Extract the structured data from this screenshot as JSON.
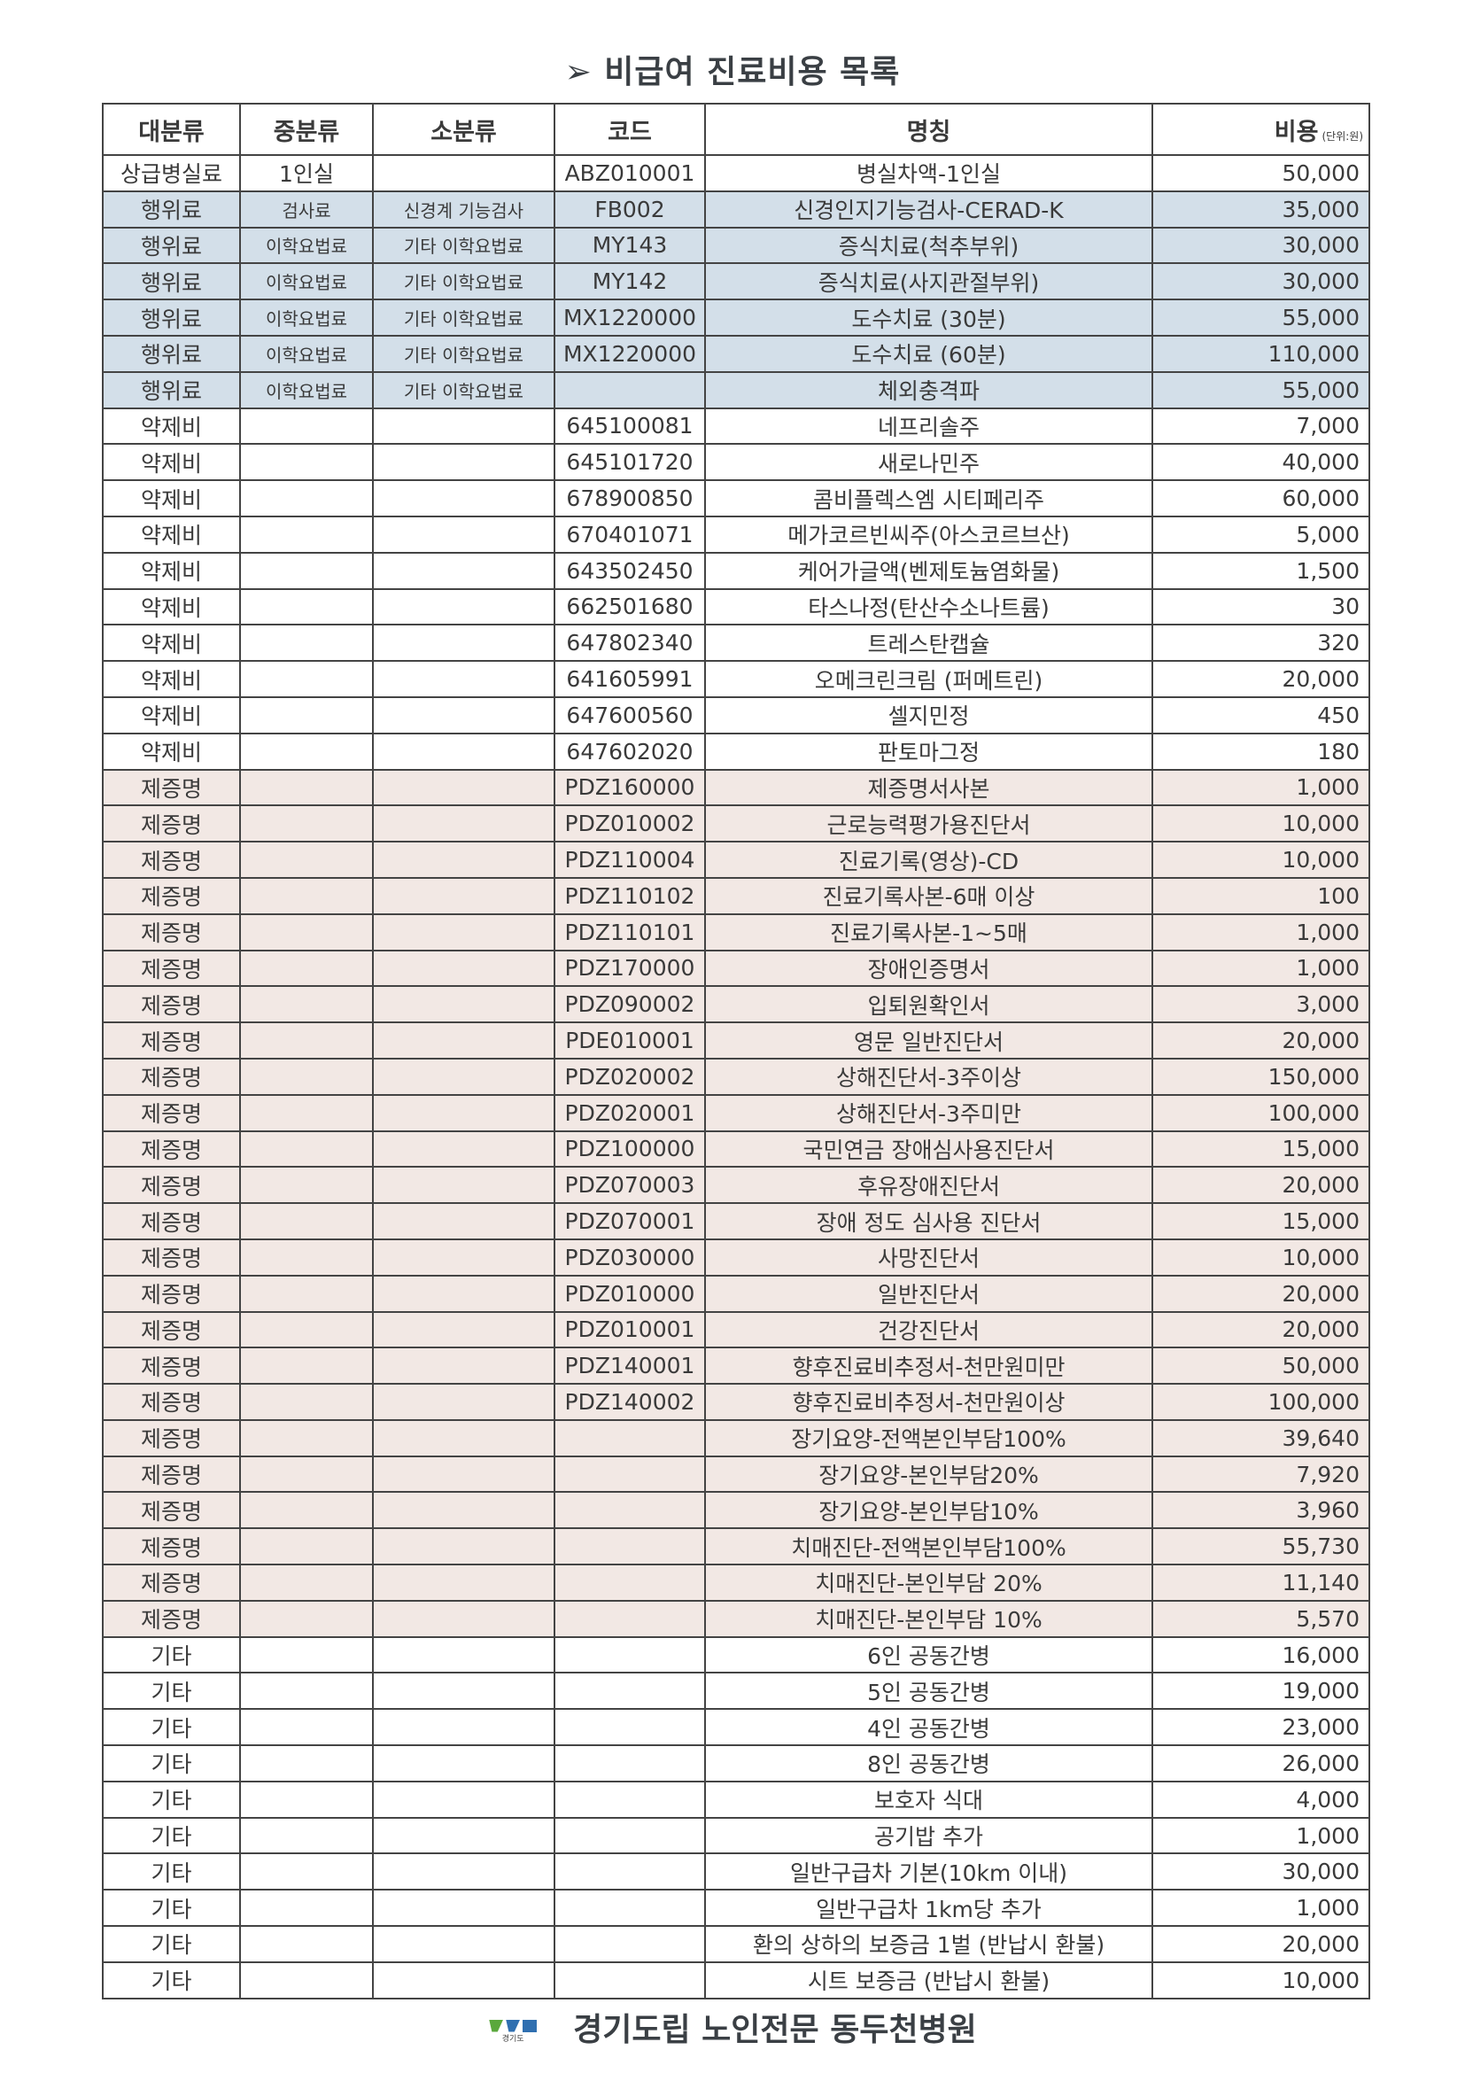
{
  "title": "➢ 비급여 진료비용 목록",
  "headers": {
    "major": "대분류",
    "middle": "중분류",
    "minor": "소분류",
    "code": "코드",
    "name": "명칭",
    "cost": "비용",
    "unit": "(단위:원)"
  },
  "row_colors": {
    "행위료": "#d3dfe9",
    "제증명": "#f2e8e4"
  },
  "rows": [
    [
      "상급병실료",
      "1인실",
      "",
      "ABZ010001",
      "병실차액-1인실",
      "50,000"
    ],
    [
      "행위료",
      "검사료",
      "신경계 기능검사",
      "FB002",
      "신경인지기능검사-CERAD-K",
      "35,000"
    ],
    [
      "행위료",
      "이학요법료",
      "기타 이학요법료",
      "MY143",
      "증식치료(척추부위)",
      "30,000"
    ],
    [
      "행위료",
      "이학요법료",
      "기타 이학요법료",
      "MY142",
      "증식치료(사지관절부위)",
      "30,000"
    ],
    [
      "행위료",
      "이학요법료",
      "기타 이학요법료",
      "MX1220000",
      "도수치료 (30분)",
      "55,000"
    ],
    [
      "행위료",
      "이학요법료",
      "기타 이학요법료",
      "MX1220000",
      "도수치료 (60분)",
      "110,000"
    ],
    [
      "행위료",
      "이학요법료",
      "기타 이학요법료",
      "",
      "체외충격파",
      "55,000"
    ],
    [
      "약제비",
      "",
      "",
      "645100081",
      "네프리솔주",
      "7,000"
    ],
    [
      "약제비",
      "",
      "",
      "645101720",
      "새로나민주",
      "40,000"
    ],
    [
      "약제비",
      "",
      "",
      "678900850",
      "콤비플렉스엠 시티페리주",
      "60,000"
    ],
    [
      "약제비",
      "",
      "",
      "670401071",
      "메가코르빈씨주(아스코르브산)",
      "5,000"
    ],
    [
      "약제비",
      "",
      "",
      "643502450",
      "케어가글액(벤제토늄염화물)",
      "1,500"
    ],
    [
      "약제비",
      "",
      "",
      "662501680",
      "타스나정(탄산수소나트륨)",
      "30"
    ],
    [
      "약제비",
      "",
      "",
      "647802340",
      "트레스탄캡슐",
      "320"
    ],
    [
      "약제비",
      "",
      "",
      "641605991",
      "오메크린크림 (퍼메트린)",
      "20,000"
    ],
    [
      "약제비",
      "",
      "",
      "647600560",
      "셀지민정",
      "450"
    ],
    [
      "약제비",
      "",
      "",
      "647602020",
      "판토마그정",
      "180"
    ],
    [
      "제증명",
      "",
      "",
      "PDZ160000",
      "제증명서사본",
      "1,000"
    ],
    [
      "제증명",
      "",
      "",
      "PDZ010002",
      "근로능력평가용진단서",
      "10,000"
    ],
    [
      "제증명",
      "",
      "",
      "PDZ110004",
      "진료기록(영상)-CD",
      "10,000"
    ],
    [
      "제증명",
      "",
      "",
      "PDZ110102",
      "진료기록사본-6매 이상",
      "100"
    ],
    [
      "제증명",
      "",
      "",
      "PDZ110101",
      "진료기록사본-1~5매",
      "1,000"
    ],
    [
      "제증명",
      "",
      "",
      "PDZ170000",
      "장애인증명서",
      "1,000"
    ],
    [
      "제증명",
      "",
      "",
      "PDZ090002",
      "입퇴원확인서",
      "3,000"
    ],
    [
      "제증명",
      "",
      "",
      "PDE010001",
      "영문 일반진단서",
      "20,000"
    ],
    [
      "제증명",
      "",
      "",
      "PDZ020002",
      "상해진단서-3주이상",
      "150,000"
    ],
    [
      "제증명",
      "",
      "",
      "PDZ020001",
      "상해진단서-3주미만",
      "100,000"
    ],
    [
      "제증명",
      "",
      "",
      "PDZ100000",
      "국민연금 장애심사용진단서",
      "15,000"
    ],
    [
      "제증명",
      "",
      "",
      "PDZ070003",
      "후유장애진단서",
      "20,000"
    ],
    [
      "제증명",
      "",
      "",
      "PDZ070001",
      "장애 정도 심사용 진단서",
      "15,000"
    ],
    [
      "제증명",
      "",
      "",
      "PDZ030000",
      "사망진단서",
      "10,000"
    ],
    [
      "제증명",
      "",
      "",
      "PDZ010000",
      "일반진단서",
      "20,000"
    ],
    [
      "제증명",
      "",
      "",
      "PDZ010001",
      "건강진단서",
      "20,000"
    ],
    [
      "제증명",
      "",
      "",
      "PDZ140001",
      "향후진료비추정서-천만원미만",
      "50,000"
    ],
    [
      "제증명",
      "",
      "",
      "PDZ140002",
      "향후진료비추정서-천만원이상",
      "100,000"
    ],
    [
      "제증명",
      "",
      "",
      "",
      "장기요양-전액본인부담100%",
      "39,640"
    ],
    [
      "제증명",
      "",
      "",
      "",
      "장기요양-본인부담20%",
      "7,920"
    ],
    [
      "제증명",
      "",
      "",
      "",
      "장기요양-본인부담10%",
      "3,960"
    ],
    [
      "제증명",
      "",
      "",
      "",
      "치매진단-전액본인부담100%",
      "55,730"
    ],
    [
      "제증명",
      "",
      "",
      "",
      "치매진단-본인부담 20%",
      "11,140"
    ],
    [
      "제증명",
      "",
      "",
      "",
      "치매진단-본인부담 10%",
      "5,570"
    ],
    [
      "기타",
      "",
      "",
      "",
      "6인 공동간병",
      "16,000"
    ],
    [
      "기타",
      "",
      "",
      "",
      "5인 공동간병",
      "19,000"
    ],
    [
      "기타",
      "",
      "",
      "",
      "4인 공동간병",
      "23,000"
    ],
    [
      "기타",
      "",
      "",
      "",
      "8인 공동간병",
      "26,000"
    ],
    [
      "기타",
      "",
      "",
      "",
      "보호자 식대",
      "4,000"
    ],
    [
      "기타",
      "",
      "",
      "",
      "공기밥 추가",
      "1,000"
    ],
    [
      "기타",
      "",
      "",
      "",
      "일반구급차 기본(10km 이내)",
      "30,000"
    ],
    [
      "기타",
      "",
      "",
      "",
      "일반구급차 1km당 추가",
      "1,000"
    ],
    [
      "기타",
      "",
      "",
      "",
      "환의 상하의 보증금 1벌 (반납시 환불)",
      "20,000"
    ],
    [
      "기타",
      "",
      "",
      "",
      "시트 보증금 (반납시 환불)",
      "10,000"
    ]
  ],
  "footer": {
    "logo_text": "경기도",
    "hospital": "경기도립 노인전문 동두천병원"
  }
}
